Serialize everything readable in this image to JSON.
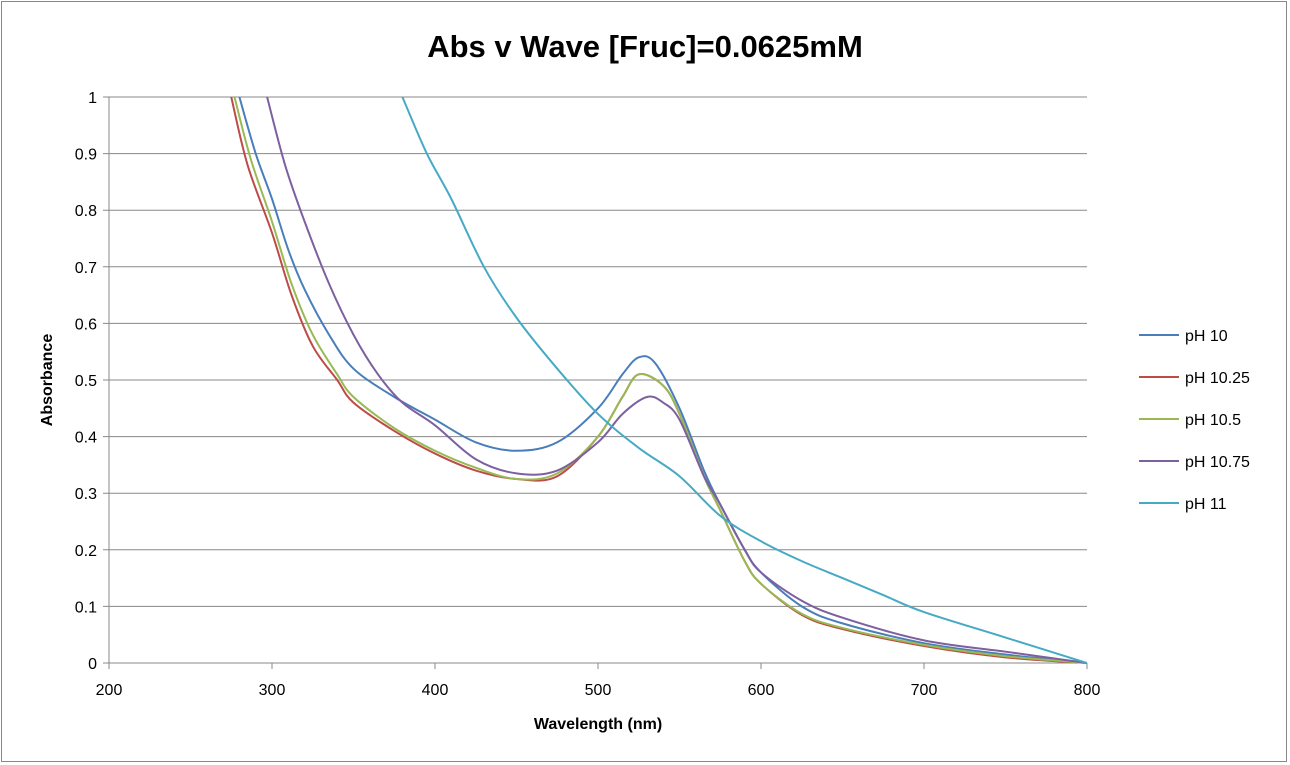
{
  "chart_data": {
    "type": "line",
    "title": "Abs v Wave [Fruc]=0.0625mM",
    "xlabel": "Wavelength (nm)",
    "ylabel": "Absorbance",
    "xlim": [
      200,
      800
    ],
    "ylim": [
      0,
      1
    ],
    "xticks": [
      "200",
      "300",
      "400",
      "500",
      "600",
      "700",
      "800"
    ],
    "yticks": [
      "0",
      "0.1",
      "0.2",
      "0.3",
      "0.4",
      "0.5",
      "0.6",
      "0.7",
      "0.8",
      "0.9",
      "1"
    ],
    "grid": "horizontal",
    "legend_position": "right",
    "series": [
      {
        "name": "pH 10",
        "color": "#4A7EBB",
        "x": [
          280,
          290,
          300,
          310,
          320,
          335,
          350,
          375,
          400,
          425,
          450,
          475,
          500,
          515,
          525,
          535,
          550,
          565,
          575,
          590,
          600,
          625,
          650,
          700,
          750,
          800
        ],
        "y": [
          1.0,
          0.9,
          0.82,
          0.73,
          0.66,
          0.58,
          0.52,
          0.47,
          0.43,
          0.39,
          0.375,
          0.39,
          0.45,
          0.51,
          0.54,
          0.53,
          0.45,
          0.34,
          0.28,
          0.2,
          0.16,
          0.1,
          0.07,
          0.035,
          0.015,
          0.0
        ]
      },
      {
        "name": "pH 10.25",
        "color": "#BE4B48",
        "x": [
          275,
          285,
          300,
          312,
          325,
          340,
          350,
          375,
          400,
          425,
          450,
          475,
          500,
          515,
          525,
          540,
          550,
          565,
          575,
          590,
          600,
          625,
          650,
          700,
          750,
          800
        ],
        "y": [
          1.0,
          0.88,
          0.76,
          0.65,
          0.56,
          0.5,
          0.46,
          0.41,
          0.37,
          0.34,
          0.325,
          0.33,
          0.4,
          0.47,
          0.51,
          0.49,
          0.44,
          0.33,
          0.27,
          0.18,
          0.14,
          0.085,
          0.06,
          0.03,
          0.01,
          0.0
        ]
      },
      {
        "name": "pH 10.5",
        "color": "#98B954",
        "x": [
          277,
          287,
          300,
          312,
          325,
          340,
          350,
          375,
          400,
          425,
          450,
          475,
          500,
          515,
          525,
          540,
          550,
          565,
          575,
          590,
          600,
          625,
          650,
          700,
          750,
          800
        ],
        "y": [
          1.0,
          0.89,
          0.78,
          0.67,
          0.58,
          0.51,
          0.47,
          0.415,
          0.375,
          0.345,
          0.325,
          0.335,
          0.4,
          0.47,
          0.51,
          0.49,
          0.44,
          0.33,
          0.27,
          0.18,
          0.14,
          0.087,
          0.062,
          0.032,
          0.012,
          0.0
        ]
      },
      {
        "name": "pH 10.75",
        "color": "#7D60A0",
        "x": [
          297,
          308,
          320,
          335,
          350,
          365,
          380,
          400,
          425,
          450,
          475,
          500,
          515,
          530,
          540,
          550,
          565,
          575,
          590,
          600,
          625,
          650,
          700,
          750,
          800
        ],
        "y": [
          1.0,
          0.88,
          0.78,
          0.67,
          0.58,
          0.51,
          0.46,
          0.42,
          0.36,
          0.335,
          0.34,
          0.39,
          0.44,
          0.47,
          0.46,
          0.43,
          0.33,
          0.28,
          0.2,
          0.16,
          0.11,
          0.08,
          0.04,
          0.02,
          0.0
        ]
      },
      {
        "name": "pH 11",
        "color": "#46AAC5",
        "x": [
          380,
          395,
          410,
          430,
          450,
          475,
          500,
          525,
          550,
          575,
          600,
          625,
          650,
          675,
          700,
          750,
          800
        ],
        "y": [
          1.0,
          0.9,
          0.82,
          0.7,
          0.61,
          0.52,
          0.44,
          0.38,
          0.33,
          0.26,
          0.215,
          0.18,
          0.15,
          0.12,
          0.09,
          0.045,
          0.0
        ]
      }
    ]
  }
}
